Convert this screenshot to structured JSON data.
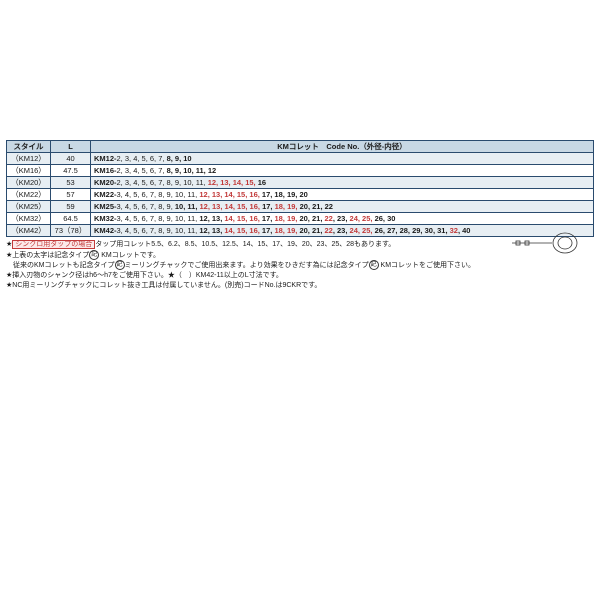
{
  "headers": {
    "style": "スタイル",
    "l": "L",
    "code": "KMコレット　Code No.（外径-内径）"
  },
  "rows": [
    {
      "alt": true,
      "style": "（KM12）",
      "l": "40",
      "prefix": "KM12-",
      "runs": [
        {
          "t": "2, 3, 4, 5, 6, 7, "
        },
        {
          "t": "8, 9, 10",
          "b": true
        }
      ]
    },
    {
      "alt": false,
      "style": "（KM16）",
      "l": "47.5",
      "prefix": "KM16-",
      "runs": [
        {
          "t": "2, 3, 4, 5, 6, 7, "
        },
        {
          "t": "8, 9, 10, 11, 12",
          "b": true
        }
      ]
    },
    {
      "alt": true,
      "style": "（KM20）",
      "l": "53",
      "prefix": "KM20-",
      "runs": [
        {
          "t": "2, 3, 4, 5, 6, 7, 8, 9, 10, 11, "
        },
        {
          "t": "12, 13, 14, 15, ",
          "b": true,
          "red": true
        },
        {
          "t": "16",
          "b": true
        }
      ]
    },
    {
      "alt": false,
      "style": "（KM22）",
      "l": "57",
      "prefix": "KM22-",
      "runs": [
        {
          "t": "3, 4, 5, 6, 7, 8, 9, 10, 11, "
        },
        {
          "t": "12, 13, 14, 15, 16, ",
          "b": true,
          "red": true
        },
        {
          "t": "17, 18, 19, 20",
          "b": true
        }
      ]
    },
    {
      "alt": true,
      "style": "（KM25）",
      "l": "59",
      "prefix": "KM25-",
      "runs": [
        {
          "t": "3, 4, 5, 6, 7, 8, 9, "
        },
        {
          "t": "10, 11, ",
          "b": true
        },
        {
          "t": "12, 13, 14, 15, 16, ",
          "b": true,
          "red": true
        },
        {
          "t": "17, ",
          "b": true
        },
        {
          "t": "18, 19, ",
          "b": true,
          "red": true
        },
        {
          "t": "20, ",
          "b": true
        },
        {
          "t": "21, 22",
          "b": true
        }
      ]
    },
    {
      "alt": false,
      "style": "（KM32）",
      "l": "64.5",
      "prefix": "KM32-",
      "runs": [
        {
          "t": "3, 4, 5, 6, 7, 8, 9, 10, 11, "
        },
        {
          "t": "12, 13, ",
          "b": true
        },
        {
          "t": "14, 15, 16, ",
          "b": true,
          "red": true
        },
        {
          "t": "17, ",
          "b": true
        },
        {
          "t": "18, 19, ",
          "b": true,
          "red": true
        },
        {
          "t": "20, 21, ",
          "b": true
        },
        {
          "t": "22",
          "b": true,
          "red": true
        },
        {
          "t": ", 23, ",
          "b": true
        },
        {
          "t": "24, 25, ",
          "b": true,
          "red": true
        },
        {
          "t": "26, 30",
          "b": true
        }
      ]
    },
    {
      "alt": true,
      "style": "（KM42）",
      "l": "73（78）",
      "prefix": "KM42-",
      "runs": [
        {
          "t": "3, 4, 5, 6, 7, 8, 9, 10, 11, "
        },
        {
          "t": "12, 13, ",
          "b": true
        },
        {
          "t": "14, 15, 16, ",
          "b": true,
          "red": true
        },
        {
          "t": "17, ",
          "b": true
        },
        {
          "t": "18, 19, ",
          "b": true,
          "red": true
        },
        {
          "t": "20, ",
          "b": true
        },
        {
          "t": "21, ",
          "b": true
        },
        {
          "t": "22",
          "b": true,
          "red": true
        },
        {
          "t": ", 23, ",
          "b": true
        },
        {
          "t": "24, 25, ",
          "b": true,
          "red": true
        },
        {
          "t": "26, 27, 28, 29, 30, 31, ",
          "b": true
        },
        {
          "t": "32",
          "b": true,
          "red": true
        },
        {
          "t": ", 40",
          "b": true
        }
      ]
    }
  ],
  "notes": {
    "n1a": "シンクロ用タップの場合",
    "n1b": "タップ用コレット5.5、6.2、8.5、10.5、12.5、14、15、17、19、20、23、25、28もあります。",
    "n2a": "上表の太字は記念タイプ",
    "n2b": "KMコレットです。",
    "n3a": "従来のKMコレットも記念タイプ",
    "n3b": "ミーリングチャックでご使用出来ます。より効果をひきだす為には記念タイプ",
    "n3c": "KMコレットをご使用下さい。",
    "n4": "挿入刃物のシャンク径はh6〜h7をご使用下さい。★（　）KM42-11以上のL寸法です。",
    "n5": "NC用ミーリングチャックにコレット抜き工具は付属していません。(別売)コードNo.は9CKRです。",
    "circled": "記"
  }
}
